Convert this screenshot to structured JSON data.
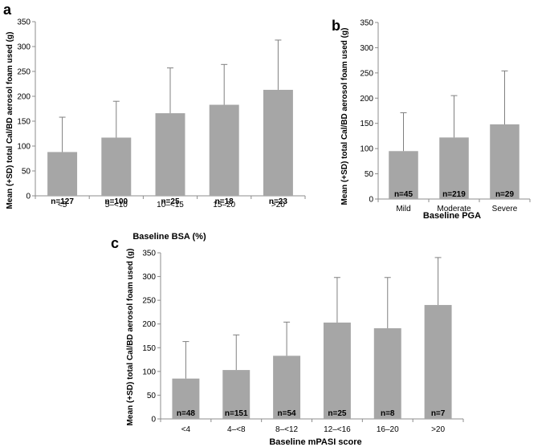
{
  "colors": {
    "bar": "#a6a6a6",
    "axis": "#8c8c8c",
    "error": "#808080",
    "text": "#000000"
  },
  "chart_data": [
    {
      "id": "a",
      "type": "bar",
      "panel_label": "a",
      "title": "",
      "xlabel": "Baseline BSA (%)",
      "ylabel": "Mean (+SD) total Cal/BD aerosol foam used (g)",
      "ylim": [
        0,
        350
      ],
      "yticks": [
        0,
        50,
        100,
        150,
        200,
        250,
        300,
        350
      ],
      "grid": false,
      "categories": [
        "<5",
        "5–<10",
        "10–<15",
        "15–20",
        ">20"
      ],
      "values": [
        88,
        117,
        166,
        183,
        213
      ],
      "sd_upper": [
        158,
        190,
        257,
        264,
        313
      ],
      "n_labels": [
        "n=127",
        "n=100",
        "n=25",
        "n=18",
        "n=23"
      ]
    },
    {
      "id": "b",
      "type": "bar",
      "panel_label": "b",
      "title": "",
      "xlabel": "Baseline PGA",
      "ylabel": "Mean (+SD) total Cal/BD aerosol foam used (g)",
      "ylim": [
        0,
        350
      ],
      "yticks": [
        0,
        50,
        100,
        150,
        200,
        250,
        300,
        350
      ],
      "grid": false,
      "categories": [
        "Mild",
        "Moderate",
        "Severe"
      ],
      "values": [
        95,
        122,
        148
      ],
      "sd_upper": [
        171,
        205,
        254
      ],
      "n_labels": [
        "n=45",
        "n=219",
        "n=29"
      ]
    },
    {
      "id": "c",
      "type": "bar",
      "panel_label": "c",
      "title": "",
      "xlabel": "Baseline mPASI score",
      "ylabel": "Mean (+SD) total Cal/BD aerosol foam used (g)",
      "ylim": [
        0,
        350
      ],
      "yticks": [
        0,
        50,
        100,
        150,
        200,
        250,
        300,
        350
      ],
      "grid": false,
      "categories": [
        "<4",
        "4–<8",
        "8–<12",
        "12–<16",
        "16–20",
        ">20"
      ],
      "values": [
        85,
        103,
        133,
        203,
        191,
        240
      ],
      "sd_upper": [
        163,
        177,
        204,
        298,
        298,
        340
      ],
      "n_labels": [
        "n=48",
        "n=151",
        "n=54",
        "n=25",
        "n=8",
        "n=7"
      ]
    }
  ]
}
